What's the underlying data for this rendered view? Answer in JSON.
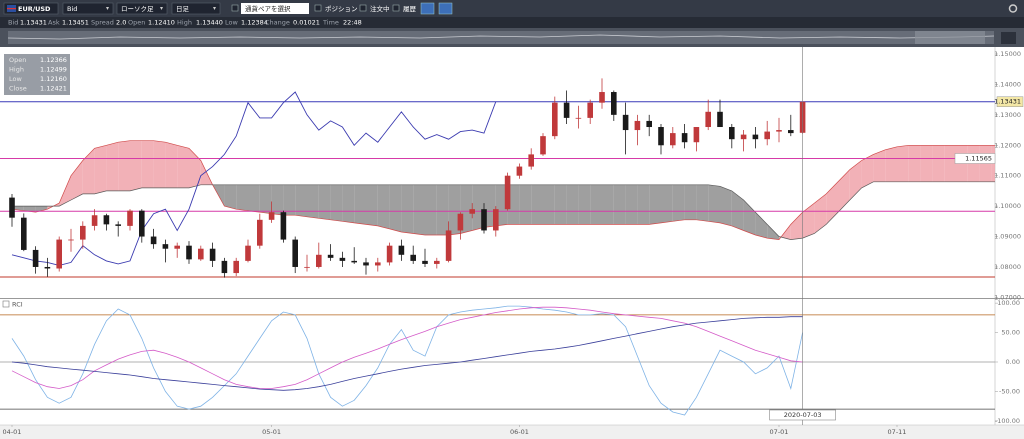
{
  "toolbar": {
    "symbol": "EUR/USD",
    "price_side": "Bid",
    "chart_kind": "ローソク足",
    "period": "日足",
    "options": [
      "通貨ペアを選択",
      "ポジション",
      "注文中",
      "履歴"
    ]
  },
  "quote": [
    {
      "label": "Bid",
      "value": "1.13431"
    },
    {
      "label": "Ask",
      "value": "1.13451"
    },
    {
      "label": "Spread",
      "value": "2.0"
    },
    {
      "label": "Open",
      "value": "1.12410"
    },
    {
      "label": "High",
      "value": "1.13440"
    },
    {
      "label": "Low",
      "value": "1.12384"
    },
    {
      "label": "Change",
      "value": "0.01021"
    },
    {
      "label": "Time",
      "value": "22:48"
    }
  ],
  "chart_data": [
    {
      "type": "candlestick",
      "categories": [
        "04-01",
        null,
        null,
        null,
        null,
        null,
        null,
        null,
        null,
        null,
        null,
        null,
        null,
        null,
        null,
        null,
        null,
        null,
        null,
        null,
        null,
        null,
        "05-01",
        null,
        null,
        null,
        null,
        null,
        null,
        null,
        null,
        null,
        null,
        null,
        null,
        null,
        null,
        null,
        null,
        null,
        null,
        null,
        null,
        "06-01",
        null,
        null,
        null,
        null,
        null,
        null,
        null,
        null,
        null,
        null,
        null,
        null,
        null,
        null,
        null,
        null,
        null,
        null,
        null,
        null,
        null,
        "07-01",
        null,
        null,
        null,
        null,
        null,
        null,
        null,
        null,
        null,
        "07-11",
        null,
        null,
        null,
        null,
        null,
        null,
        null,
        null,
        null,
        null
      ],
      "ohlc": [
        [
          1.1028,
          1.104,
          1.0932,
          1.0962
        ],
        [
          1.0962,
          1.0976,
          1.0852,
          1.0856
        ],
        [
          1.0856,
          1.0868,
          1.0778,
          1.08
        ],
        [
          1.08,
          1.083,
          1.0768,
          1.0795
        ],
        [
          1.0795,
          1.09,
          1.0785,
          1.089
        ],
        [
          1.089,
          1.0925,
          1.085,
          1.089
        ],
        [
          1.089,
          1.095,
          1.086,
          1.0935
        ],
        [
          1.0935,
          1.099,
          1.092,
          1.097
        ],
        [
          1.097,
          1.0975,
          1.092,
          1.094
        ],
        [
          1.094,
          1.095,
          1.09,
          1.0935
        ],
        [
          1.0935,
          1.099,
          1.092,
          1.0985
        ],
        [
          1.0985,
          1.099,
          1.088,
          1.09
        ],
        [
          1.09,
          1.0925,
          1.086,
          1.0875
        ],
        [
          1.0875,
          1.089,
          1.0815,
          1.086
        ],
        [
          1.086,
          1.088,
          1.083,
          1.087
        ],
        [
          1.087,
          1.0885,
          1.081,
          1.0825
        ],
        [
          1.0825,
          1.087,
          1.082,
          1.086
        ],
        [
          1.086,
          1.088,
          1.08,
          1.082
        ],
        [
          1.082,
          1.083,
          1.0765,
          1.078
        ],
        [
          1.078,
          1.083,
          1.077,
          1.082
        ],
        [
          1.082,
          1.089,
          1.0815,
          1.087
        ],
        [
          1.087,
          1.0975,
          1.086,
          1.0955
        ],
        [
          1.0955,
          1.1015,
          1.0945,
          1.098
        ],
        [
          1.098,
          1.0985,
          1.088,
          1.089
        ],
        [
          1.089,
          1.09,
          1.078,
          1.08
        ],
        [
          1.08,
          1.084,
          1.0785,
          1.08
        ],
        [
          1.08,
          1.088,
          1.0795,
          1.084
        ],
        [
          1.084,
          1.0875,
          1.082,
          1.083
        ],
        [
          1.083,
          1.085,
          1.08,
          1.082
        ],
        [
          1.082,
          1.0865,
          1.081,
          1.0815
        ],
        [
          1.0815,
          1.083,
          1.0775,
          1.0805
        ],
        [
          1.0805,
          1.083,
          1.0785,
          1.0815
        ],
        [
          1.0815,
          1.088,
          1.0805,
          1.087
        ],
        [
          1.087,
          1.089,
          1.082,
          1.084
        ],
        [
          1.084,
          1.087,
          1.081,
          1.082
        ],
        [
          1.082,
          1.086,
          1.08,
          1.081
        ],
        [
          1.081,
          1.083,
          1.0795,
          1.082
        ],
        [
          1.082,
          1.095,
          1.0815,
          1.092
        ],
        [
          1.092,
          1.098,
          1.089,
          1.0975
        ],
        [
          1.0975,
          1.101,
          1.096,
          1.099
        ],
        [
          1.099,
          1.101,
          1.091,
          1.092
        ],
        [
          1.092,
          1.1,
          1.09,
          1.099
        ],
        [
          1.099,
          1.111,
          1.0985,
          1.11
        ],
        [
          1.11,
          1.114,
          1.109,
          1.113
        ],
        [
          1.113,
          1.119,
          1.112,
          1.117
        ],
        [
          1.117,
          1.124,
          1.1165,
          1.123
        ],
        [
          1.123,
          1.136,
          1.122,
          1.134
        ],
        [
          1.134,
          1.138,
          1.127,
          1.129
        ],
        [
          1.129,
          1.133,
          1.1255,
          1.129
        ],
        [
          1.129,
          1.135,
          1.127,
          1.134
        ],
        [
          1.134,
          1.142,
          1.132,
          1.1375
        ],
        [
          1.1375,
          1.138,
          1.128,
          1.13
        ],
        [
          1.13,
          1.134,
          1.117,
          1.125
        ],
        [
          1.125,
          1.13,
          1.12,
          1.128
        ],
        [
          1.128,
          1.13,
          1.123,
          1.126
        ],
        [
          1.126,
          1.127,
          1.117,
          1.12
        ],
        [
          1.12,
          1.126,
          1.119,
          1.124
        ],
        [
          1.124,
          1.127,
          1.119,
          1.121
        ],
        [
          1.121,
          1.126,
          1.118,
          1.126
        ],
        [
          1.126,
          1.135,
          1.125,
          1.131
        ],
        [
          1.131,
          1.135,
          1.127,
          1.126
        ],
        [
          1.126,
          1.127,
          1.119,
          1.122
        ],
        [
          1.122,
          1.125,
          1.118,
          1.1235
        ],
        [
          1.1235,
          1.126,
          1.119,
          1.122
        ],
        [
          1.122,
          1.128,
          1.12,
          1.1245
        ],
        [
          1.1245,
          1.129,
          1.121,
          1.125
        ],
        [
          1.125,
          1.13,
          1.123,
          1.124
        ],
        [
          1.1241,
          1.1344,
          1.12384,
          1.13431
        ],
        null,
        null,
        null,
        null,
        null,
        null,
        null,
        null,
        null,
        null,
        null,
        null,
        null,
        null,
        null,
        null,
        null,
        null
      ],
      "up_color": "#c0393b",
      "down_color": "#1a1a1a",
      "cloud": {
        "span_a": [
          1.099,
          1.0985,
          1.098,
          1.099,
          1.101,
          1.11,
          1.115,
          1.119,
          1.12,
          1.121,
          1.1215,
          1.1215,
          1.1215,
          1.121,
          1.12,
          1.119,
          1.115,
          1.107,
          1.1,
          1.099,
          1.0985,
          1.098,
          1.0975,
          1.097,
          1.097,
          1.0965,
          1.096,
          1.0955,
          1.095,
          1.0945,
          1.094,
          1.0935,
          1.0925,
          1.0915,
          1.091,
          1.0905,
          1.0905,
          1.0905,
          1.091,
          1.092,
          1.093,
          1.0935,
          1.094,
          1.094,
          1.094,
          1.094,
          1.094,
          1.094,
          1.094,
          1.094,
          1.094,
          1.094,
          1.094,
          1.094,
          1.094,
          1.0945,
          1.095,
          1.0955,
          1.0955,
          1.095,
          1.0945,
          1.0935,
          1.092,
          1.0905,
          1.0895,
          1.089,
          1.094,
          1.098,
          1.101,
          1.104,
          1.108,
          1.112,
          1.115,
          1.117,
          1.1185,
          1.1195,
          1.12,
          1.12,
          1.12,
          1.12,
          1.12,
          1.12,
          1.12,
          1.12,
          1.12,
          1.12
        ],
        "span_b": [
          1.1,
          1.1,
          1.1,
          1.1,
          1.1,
          1.102,
          1.104,
          1.104,
          1.105,
          1.105,
          1.105,
          1.106,
          1.106,
          1.106,
          1.106,
          1.106,
          1.107,
          1.107,
          1.107,
          1.107,
          1.107,
          1.107,
          1.107,
          1.107,
          1.107,
          1.107,
          1.107,
          1.107,
          1.107,
          1.107,
          1.107,
          1.107,
          1.107,
          1.107,
          1.107,
          1.107,
          1.107,
          1.107,
          1.107,
          1.107,
          1.107,
          1.107,
          1.107,
          1.107,
          1.107,
          1.107,
          1.107,
          1.107,
          1.107,
          1.107,
          1.107,
          1.107,
          1.107,
          1.107,
          1.107,
          1.107,
          1.107,
          1.107,
          1.107,
          1.107,
          1.1065,
          1.105,
          1.102,
          1.098,
          1.094,
          1.09,
          1.089,
          1.0895,
          1.091,
          1.094,
          1.098,
          1.102,
          1.106,
          1.108,
          1.108,
          1.108,
          1.108,
          1.108,
          1.108,
          1.108,
          1.108,
          1.108,
          1.108,
          1.108,
          1.108,
          1.108
        ],
        "bull_color": "#f0a3aa",
        "bear_color": "#8e8e8e",
        "a_color": "#d04a4a",
        "b_color": "#5a5a5a"
      },
      "lagging_span_color": "#3b3bb0",
      "hlines": [
        {
          "value": 1.13431,
          "color": "#3a3ab8",
          "label_fill": "#f3e7a6"
        },
        {
          "value": 1.11565,
          "color": "#d63aa8",
          "label_fill": "#ffffff"
        },
        {
          "value": 1.0983,
          "color": "#d63aa8"
        },
        {
          "value": 1.0767,
          "color": "#c0392b"
        }
      ],
      "ohlc_box": [
        {
          "label": "Open",
          "value": "1.12366"
        },
        {
          "label": "High",
          "value": "1.12499"
        },
        {
          "label": "Low",
          "value": "1.12160"
        },
        {
          "label": "Close",
          "value": "1.12421"
        }
      ],
      "crosshair_label": "2020-07-03",
      "ylim": [
        1.0698,
        1.1523
      ],
      "yticks": [
        {
          "value": 1.15,
          "label": "1.15000"
        },
        {
          "value": 1.14,
          "label": "1.14000"
        },
        {
          "value": 1.13,
          "label": "1.13000"
        },
        {
          "value": 1.12,
          "label": "1.12000"
        },
        {
          "value": 1.11,
          "label": "1.11000"
        },
        {
          "value": 1.1,
          "label": "1.10000"
        },
        {
          "value": 1.09,
          "label": "1.09000"
        },
        {
          "value": 1.08,
          "label": "1.08000"
        },
        {
          "value": 1.07,
          "label": "1.07000"
        }
      ]
    },
    {
      "type": "line",
      "title": "RCI",
      "series": [
        {
          "color": "#7fb3e6",
          "values": [
            40,
            10,
            -30,
            -60,
            -70,
            -60,
            -20,
            30,
            70,
            90,
            80,
            40,
            -10,
            -50,
            -75,
            -80,
            -75,
            -60,
            -40,
            -20,
            10,
            40,
            70,
            85,
            80,
            40,
            -20,
            -60,
            -75,
            -65,
            -40,
            -10,
            30,
            55,
            20,
            10,
            60,
            80,
            85,
            88,
            90,
            92,
            95,
            95,
            93,
            90,
            88,
            85,
            80,
            80,
            82,
            80,
            60,
            10,
            -40,
            -70,
            -85,
            -90,
            -60,
            -20,
            20,
            10,
            0,
            -20,
            -10,
            10,
            -45,
            50,
            null,
            null,
            null,
            null,
            null,
            null,
            null,
            null,
            null,
            null,
            null,
            null,
            null,
            null,
            null,
            null,
            null,
            null
          ]
        },
        {
          "color": "#d45bc8",
          "values": [
            -15,
            -25,
            -35,
            -42,
            -45,
            -40,
            -30,
            -15,
            -5,
            5,
            12,
            18,
            20,
            15,
            8,
            0,
            -10,
            -20,
            -30,
            -38,
            -42,
            -45,
            -45,
            -42,
            -38,
            -30,
            -20,
            -10,
            0,
            8,
            15,
            22,
            30,
            38,
            45,
            52,
            60,
            66,
            72,
            76,
            80,
            84,
            87,
            90,
            92,
            93,
            93,
            92,
            90,
            88,
            85,
            82,
            80,
            78,
            76,
            74,
            70,
            66,
            60,
            52,
            44,
            36,
            28,
            20,
            14,
            8,
            2,
            0,
            null,
            null,
            null,
            null,
            null,
            null,
            null,
            null,
            null,
            null,
            null,
            null,
            null,
            null,
            null,
            null,
            null,
            null
          ]
        },
        {
          "color": "#3a3f9a",
          "values": [
            0,
            -2,
            -5,
            -8,
            -10,
            -12,
            -14,
            -16,
            -18,
            -20,
            -22,
            -25,
            -28,
            -30,
            -32,
            -34,
            -36,
            -38,
            -40,
            -42,
            -44,
            -46,
            -47,
            -48,
            -47,
            -45,
            -42,
            -38,
            -33,
            -28,
            -24,
            -20,
            -16,
            -12,
            -9,
            -6,
            -4,
            -2,
            0,
            3,
            6,
            9,
            12,
            15,
            18,
            20,
            22,
            25,
            28,
            32,
            36,
            40,
            44,
            48,
            52,
            56,
            60,
            63,
            66,
            68,
            70,
            72,
            74,
            75,
            76,
            76,
            77,
            77,
            null,
            null,
            null,
            null,
            null,
            null,
            null,
            null,
            null,
            null,
            null,
            null,
            null,
            null,
            null,
            null,
            null,
            null
          ]
        }
      ],
      "ref_lines": [
        {
          "value": 80,
          "color": "#b5651d"
        },
        {
          "value": 0,
          "color": "#999999"
        },
        {
          "value": -80,
          "color": "#444444"
        }
      ],
      "ylim": [
        -107,
        107
      ],
      "yticks": [
        {
          "value": 100,
          "label": "100.00"
        },
        {
          "value": 50,
          "label": "50.00"
        },
        {
          "value": 0,
          "label": "0.00"
        },
        {
          "value": -50,
          "label": "-50.00"
        },
        {
          "value": -100,
          "label": "-100.00"
        }
      ]
    }
  ]
}
